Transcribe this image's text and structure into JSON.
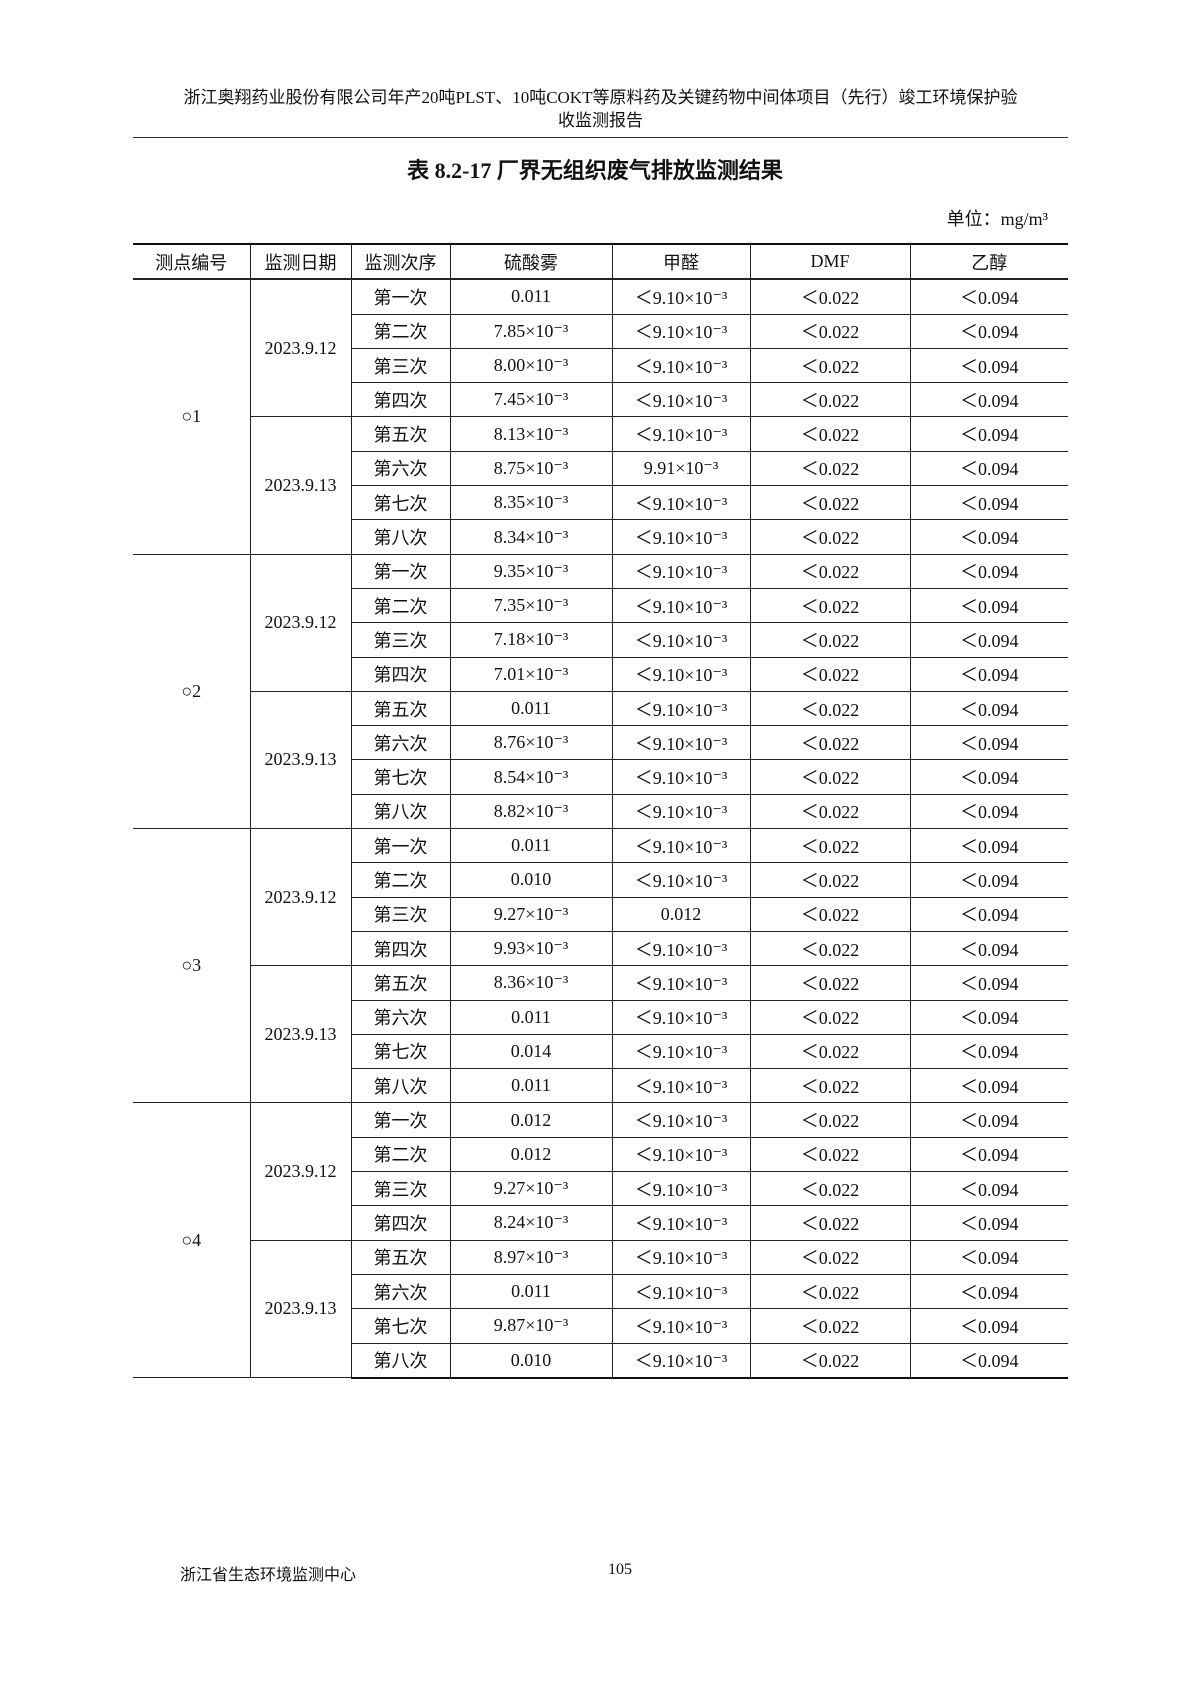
{
  "header": {
    "line1": "浙江奥翔药业股份有限公司年产20吨PLST、10吨COKT等原料药及关键药物中间体项目（先行）竣工环境保护验",
    "line2": "收监测报告"
  },
  "title": "表 8.2-17  厂界无组织废气排放监测结果",
  "unit": "单位：mg/m³",
  "columns": [
    "测点编号",
    "监测日期",
    "监测次序",
    "硫酸雾",
    "甲醛",
    "DMF",
    "乙醇"
  ],
  "points": [
    {
      "id": "○1",
      "dates": [
        {
          "date": "2023.9.12",
          "runs": [
            [
              "第一次",
              "0.011",
              "＜9.10×10⁻³",
              "＜0.022",
              "＜0.094"
            ],
            [
              "第二次",
              "7.85×10⁻³",
              "＜9.10×10⁻³",
              "＜0.022",
              "＜0.094"
            ],
            [
              "第三次",
              "8.00×10⁻³",
              "＜9.10×10⁻³",
              "＜0.022",
              "＜0.094"
            ],
            [
              "第四次",
              "7.45×10⁻³",
              "＜9.10×10⁻³",
              "＜0.022",
              "＜0.094"
            ]
          ]
        },
        {
          "date": "2023.9.13",
          "runs": [
            [
              "第五次",
              "8.13×10⁻³",
              "＜9.10×10⁻³",
              "＜0.022",
              "＜0.094"
            ],
            [
              "第六次",
              "8.75×10⁻³",
              "9.91×10⁻³",
              "＜0.022",
              "＜0.094"
            ],
            [
              "第七次",
              "8.35×10⁻³",
              "＜9.10×10⁻³",
              "＜0.022",
              "＜0.094"
            ],
            [
              "第八次",
              "8.34×10⁻³",
              "＜9.10×10⁻³",
              "＜0.022",
              "＜0.094"
            ]
          ]
        }
      ]
    },
    {
      "id": "○2",
      "dates": [
        {
          "date": "2023.9.12",
          "runs": [
            [
              "第一次",
              "9.35×10⁻³",
              "＜9.10×10⁻³",
              "＜0.022",
              "＜0.094"
            ],
            [
              "第二次",
              "7.35×10⁻³",
              "＜9.10×10⁻³",
              "＜0.022",
              "＜0.094"
            ],
            [
              "第三次",
              "7.18×10⁻³",
              "＜9.10×10⁻³",
              "＜0.022",
              "＜0.094"
            ],
            [
              "第四次",
              "7.01×10⁻³",
              "＜9.10×10⁻³",
              "＜0.022",
              "＜0.094"
            ]
          ]
        },
        {
          "date": "2023.9.13",
          "runs": [
            [
              "第五次",
              "0.011",
              "＜9.10×10⁻³",
              "＜0.022",
              "＜0.094"
            ],
            [
              "第六次",
              "8.76×10⁻³",
              "＜9.10×10⁻³",
              "＜0.022",
              "＜0.094"
            ],
            [
              "第七次",
              "8.54×10⁻³",
              "＜9.10×10⁻³",
              "＜0.022",
              "＜0.094"
            ],
            [
              "第八次",
              "8.82×10⁻³",
              "＜9.10×10⁻³",
              "＜0.022",
              "＜0.094"
            ]
          ]
        }
      ]
    },
    {
      "id": "○3",
      "dates": [
        {
          "date": "2023.9.12",
          "runs": [
            [
              "第一次",
              "0.011",
              "＜9.10×10⁻³",
              "＜0.022",
              "＜0.094"
            ],
            [
              "第二次",
              "0.010",
              "＜9.10×10⁻³",
              "＜0.022",
              "＜0.094"
            ],
            [
              "第三次",
              "9.27×10⁻³",
              "0.012",
              "＜0.022",
              "＜0.094"
            ],
            [
              "第四次",
              "9.93×10⁻³",
              "＜9.10×10⁻³",
              "＜0.022",
              "＜0.094"
            ]
          ]
        },
        {
          "date": "2023.9.13",
          "runs": [
            [
              "第五次",
              "8.36×10⁻³",
              "＜9.10×10⁻³",
              "＜0.022",
              "＜0.094"
            ],
            [
              "第六次",
              "0.011",
              "＜9.10×10⁻³",
              "＜0.022",
              "＜0.094"
            ],
            [
              "第七次",
              "0.014",
              "＜9.10×10⁻³",
              "＜0.022",
              "＜0.094"
            ],
            [
              "第八次",
              "0.011",
              "＜9.10×10⁻³",
              "＜0.022",
              "＜0.094"
            ]
          ]
        }
      ]
    },
    {
      "id": "○4",
      "dates": [
        {
          "date": "2023.9.12",
          "runs": [
            [
              "第一次",
              "0.012",
              "＜9.10×10⁻³",
              "＜0.022",
              "＜0.094"
            ],
            [
              "第二次",
              "0.012",
              "＜9.10×10⁻³",
              "＜0.022",
              "＜0.094"
            ],
            [
              "第三次",
              "9.27×10⁻³",
              "＜9.10×10⁻³",
              "＜0.022",
              "＜0.094"
            ],
            [
              "第四次",
              "8.24×10⁻³",
              "＜9.10×10⁻³",
              "＜0.022",
              "＜0.094"
            ]
          ]
        },
        {
          "date": "2023.9.13",
          "runs": [
            [
              "第五次",
              "8.97×10⁻³",
              "＜9.10×10⁻³",
              "＜0.022",
              "＜0.094"
            ],
            [
              "第六次",
              "0.011",
              "＜9.10×10⁻³",
              "＜0.022",
              "＜0.094"
            ],
            [
              "第七次",
              "9.87×10⁻³",
              "＜9.10×10⁻³",
              "＜0.022",
              "＜0.094"
            ],
            [
              "第八次",
              "0.010",
              "＜9.10×10⁻³",
              "＜0.022",
              "＜0.094"
            ]
          ]
        }
      ]
    }
  ],
  "footer": {
    "org": "浙江省生态环境监测中心",
    "page": "105"
  }
}
